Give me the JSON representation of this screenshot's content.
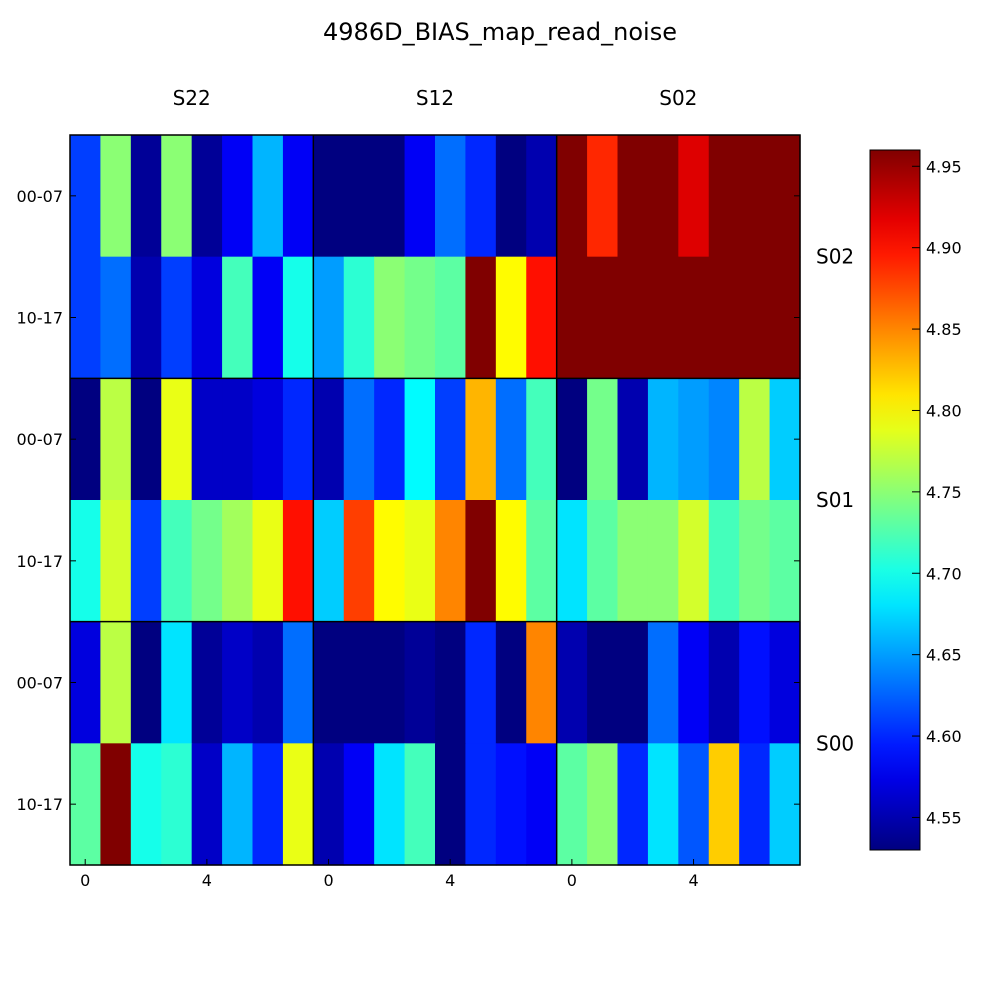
{
  "chart_data": {
    "type": "heatmap",
    "title": "4986D_BIAS_map_read_noise",
    "column_groups": [
      "S22",
      "S12",
      "S02"
    ],
    "row_groups": [
      "S02",
      "S01",
      "S00"
    ],
    "row_labels": [
      "00-07",
      "10-17"
    ],
    "x_ticks": [
      "0",
      "4"
    ],
    "colorbar": {
      "range": [
        4.53,
        4.96
      ],
      "ticks": [
        4.55,
        4.6,
        4.65,
        4.7,
        4.75,
        4.8,
        4.85,
        4.9,
        4.95
      ],
      "tick_labels": [
        "4.55",
        "4.60",
        "4.65",
        "4.70",
        "4.75",
        "4.80",
        "4.85",
        "4.90",
        "4.95"
      ],
      "colormap": "jet"
    },
    "rows": [
      [
        4.61,
        4.75,
        4.54,
        4.75,
        4.54,
        4.58,
        4.66,
        4.58,
        4.53,
        4.53,
        4.53,
        4.58,
        4.63,
        4.6,
        4.53,
        4.55,
        4.96,
        4.89,
        4.96,
        4.96,
        4.92,
        4.96,
        4.96,
        4.96
      ],
      [
        4.61,
        4.63,
        4.55,
        4.61,
        4.57,
        4.72,
        4.58,
        4.7,
        4.65,
        4.71,
        4.75,
        4.74,
        4.73,
        4.96,
        4.8,
        4.9,
        4.96,
        4.96,
        4.96,
        4.96,
        4.96,
        4.96,
        4.96,
        4.96
      ],
      [
        4.53,
        4.77,
        4.53,
        4.79,
        4.56,
        4.56,
        4.57,
        4.6,
        4.55,
        4.63,
        4.6,
        4.69,
        4.61,
        4.83,
        4.63,
        4.72,
        4.53,
        4.74,
        4.55,
        4.66,
        4.65,
        4.64,
        4.77,
        4.67
      ],
      [
        4.7,
        4.78,
        4.61,
        4.72,
        4.74,
        4.76,
        4.79,
        4.9,
        4.67,
        4.88,
        4.8,
        4.79,
        4.85,
        4.96,
        4.8,
        4.73,
        4.68,
        4.73,
        4.75,
        4.75,
        4.78,
        4.72,
        4.74,
        4.73
      ],
      [
        4.57,
        4.77,
        4.53,
        4.68,
        4.54,
        4.56,
        4.55,
        4.63,
        4.53,
        4.53,
        4.53,
        4.54,
        4.53,
        4.6,
        4.53,
        4.85,
        4.55,
        4.53,
        4.53,
        4.63,
        4.58,
        4.55,
        4.59,
        4.57
      ],
      [
        4.73,
        4.96,
        4.7,
        4.71,
        4.56,
        4.66,
        4.6,
        4.79,
        4.55,
        4.58,
        4.68,
        4.72,
        4.53,
        4.6,
        4.59,
        4.58,
        4.73,
        4.75,
        4.6,
        4.68,
        4.62,
        4.82,
        4.6,
        4.67
      ]
    ]
  }
}
